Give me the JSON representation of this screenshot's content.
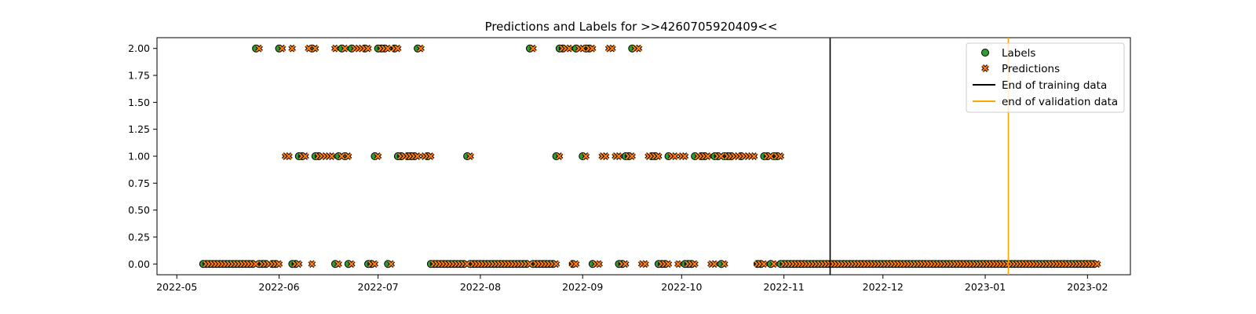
{
  "chart_data": {
    "type": "scatter",
    "title": "Predictions and Labels for >>4260705920409<<",
    "xlabel": "",
    "ylabel": "",
    "xlim": [
      "2022-04-25",
      "2023-02-14"
    ],
    "ylim": [
      -0.1,
      2.1
    ],
    "x_ticks": [
      "2022-05",
      "2022-06",
      "2022-07",
      "2022-08",
      "2022-09",
      "2022-10",
      "2022-11",
      "2022-12",
      "2023-01",
      "2023-02"
    ],
    "y_ticks": [
      "0.00",
      "0.25",
      "0.50",
      "0.75",
      "1.00",
      "1.25",
      "1.50",
      "1.75",
      "2.00"
    ],
    "grid": false,
    "legend_position": "top-right",
    "legend": [
      "Labels",
      "Predictions",
      "End of training data",
      "end of validation data"
    ],
    "colors": {
      "labels_fill": "#2ca02c",
      "predictions_fill": "#ff7f0e",
      "marker_edge": "#000000",
      "training_line": "#000000",
      "validation_line": "#ffa500"
    },
    "date_range": [
      "2022-05-09",
      "2023-02-03"
    ],
    "value_two_dates": [
      "2022-05-25",
      "2022-06-01",
      "2022-06-04",
      "2022-06-09",
      "2022-06-11",
      "2022-06-17",
      "2022-06-20",
      "2022-06-23",
      "2022-06-24",
      "2022-06-25",
      "2022-06-26",
      "2022-06-27",
      "2022-07-01",
      "2022-07-02",
      "2022-07-03",
      "2022-07-05",
      "2022-07-06",
      "2022-07-13",
      "2022-08-16",
      "2022-08-25",
      "2022-08-26",
      "2022-08-27",
      "2022-08-30",
      "2022-08-31",
      "2022-09-02",
      "2022-09-03",
      "2022-09-08",
      "2022-09-09",
      "2022-09-16",
      "2022-09-17"
    ],
    "value_one_dates": [
      "2022-06-02",
      "2022-06-03",
      "2022-06-04",
      "2022-06-07",
      "2022-06-08",
      "2022-06-09",
      "2022-06-12",
      "2022-06-13",
      "2022-06-14",
      "2022-06-15",
      "2022-06-16",
      "2022-06-19",
      "2022-06-20",
      "2022-06-21",
      "2022-06-26",
      "2022-06-27",
      "2022-06-30",
      "2022-07-01",
      "2022-07-06",
      "2022-07-07",
      "2022-07-08",
      "2022-07-09",
      "2022-07-10",
      "2022-07-11",
      "2022-07-12",
      "2022-07-13",
      "2022-07-14",
      "2022-07-15",
      "2022-07-16",
      "2022-07-28",
      "2022-08-24",
      "2022-08-25",
      "2022-09-01",
      "2022-09-02",
      "2022-09-06",
      "2022-09-07",
      "2022-09-08",
      "2022-09-09",
      "2022-09-10",
      "2022-09-11",
      "2022-09-14",
      "2022-09-15",
      "2022-09-16",
      "2022-09-17",
      "2022-09-20",
      "2022-09-21",
      "2022-09-22",
      "2022-09-23",
      "2022-09-27",
      "2022-09-28",
      "2022-09-30",
      "2022-10-01",
      "2022-10-05",
      "2022-10-06",
      "2022-10-07",
      "2022-10-08",
      "2022-10-11",
      "2022-10-12",
      "2022-10-14",
      "2022-10-15",
      "2022-10-16",
      "2022-10-17",
      "2022-10-18",
      "2022-10-19",
      "2022-10-20",
      "2022-10-21",
      "2022-10-22",
      "2022-10-26",
      "2022-10-27",
      "2022-10-29",
      "2022-10-30"
    ],
    "missing_dates": [
      "2022-05-29",
      "2022-06-02",
      "2022-06-03",
      "2022-06-04",
      "2022-06-09",
      "2022-06-10",
      "2022-06-14",
      "2022-06-15",
      "2022-06-16",
      "2022-06-17",
      "2022-06-24",
      "2022-06-25",
      "2022-06-26",
      "2022-07-05",
      "2022-07-09",
      "2022-07-14",
      "2022-07-15",
      "2022-08-27",
      "2022-08-28",
      "2022-08-31",
      "2022-09-05",
      "2022-09-06",
      "2022-09-07",
      "2022-09-08",
      "2022-09-09",
      "2022-09-10",
      "2022-09-11",
      "2022-09-17",
      "2022-09-18",
      "2022-09-19",
      "2022-09-20",
      "2022-09-21",
      "2022-09-28",
      "2022-09-29",
      "2022-09-30",
      "2022-10-01",
      "2022-10-06",
      "2022-10-09",
      "2022-10-10",
      "2022-10-17",
      "2022-10-18",
      "2022-10-20",
      "2022-10-21",
      "2022-10-22",
      "2022-10-23"
    ],
    "end_of_training_data": "2022-11-15",
    "end_of_validation_data": "2023-01-08"
  }
}
